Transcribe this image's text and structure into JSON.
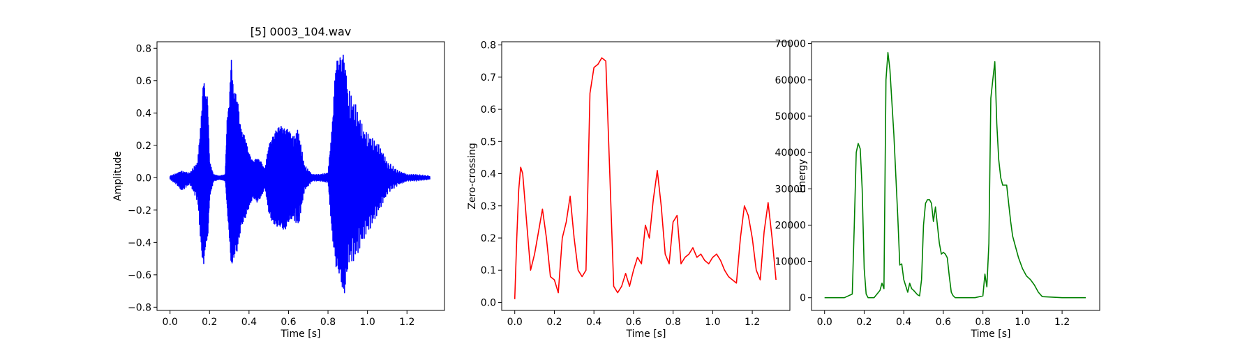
{
  "chart_data": [
    {
      "type": "line",
      "title": "[5] 0003_104.wav",
      "xlabel": "Time [s]",
      "ylabel": "Amplitude",
      "xlim": [
        -0.066,
        1.39
      ],
      "ylim": [
        -0.82,
        0.84
      ],
      "xticks": [
        "0.0",
        "0.2",
        "0.4",
        "0.6",
        "0.8",
        "1.0",
        "1.2"
      ],
      "yticks": [
        "−0.8",
        "−0.6",
        "−0.4",
        "−0.2",
        "0.0",
        "0.2",
        "0.4",
        "0.6",
        "0.8"
      ],
      "color": "#0000ff",
      "series": [
        {
          "x": [
            0.0,
            0.04,
            0.06,
            0.1,
            0.14,
            0.16,
            0.17,
            0.18,
            0.19,
            0.2,
            0.22,
            0.25,
            0.28,
            0.29,
            0.3,
            0.31,
            0.32,
            0.34,
            0.36,
            0.38,
            0.4,
            0.42,
            0.44,
            0.46,
            0.48,
            0.5,
            0.52,
            0.54,
            0.56,
            0.58,
            0.6,
            0.62,
            0.65,
            0.68,
            0.72,
            0.76,
            0.8,
            0.82,
            0.84,
            0.86,
            0.88,
            0.9,
            0.94,
            0.98,
            1.02,
            1.06,
            1.1,
            1.16,
            1.2,
            1.25,
            1.32
          ],
          "upper": [
            0.01,
            0.03,
            0.04,
            0.03,
            0.1,
            0.4,
            0.62,
            0.5,
            0.5,
            0.1,
            0.02,
            0.01,
            0.02,
            0.38,
            0.45,
            0.74,
            0.55,
            0.5,
            0.3,
            0.25,
            0.15,
            0.1,
            0.12,
            0.1,
            0.05,
            0.2,
            0.25,
            0.3,
            0.32,
            0.3,
            0.3,
            0.25,
            0.3,
            0.08,
            0.02,
            0.02,
            0.03,
            0.3,
            0.72,
            0.74,
            0.76,
            0.56,
            0.45,
            0.3,
            0.25,
            0.2,
            0.1,
            0.04,
            0.02,
            0.02,
            0.01
          ],
          "lower": [
            -0.01,
            -0.05,
            -0.08,
            -0.04,
            -0.15,
            -0.48,
            -0.53,
            -0.4,
            -0.38,
            -0.12,
            -0.02,
            -0.01,
            -0.02,
            -0.2,
            -0.37,
            -0.55,
            -0.5,
            -0.45,
            -0.3,
            -0.25,
            -0.18,
            -0.12,
            -0.15,
            -0.12,
            -0.06,
            -0.22,
            -0.28,
            -0.3,
            -0.3,
            -0.33,
            -0.27,
            -0.25,
            -0.3,
            -0.08,
            -0.02,
            -0.02,
            -0.03,
            -0.35,
            -0.55,
            -0.6,
            -0.74,
            -0.55,
            -0.5,
            -0.38,
            -0.3,
            -0.2,
            -0.1,
            -0.04,
            -0.02,
            -0.02,
            -0.01
          ]
        }
      ]
    },
    {
      "type": "line",
      "title": "",
      "xlabel": "Time [s]",
      "ylabel": "Zero-crossing",
      "xlim": [
        -0.066,
        1.39
      ],
      "ylim": [
        -0.025,
        0.81
      ],
      "xticks": [
        "0.0",
        "0.2",
        "0.4",
        "0.6",
        "0.8",
        "1.0",
        "1.2"
      ],
      "yticks": [
        "0.0",
        "0.1",
        "0.2",
        "0.3",
        "0.4",
        "0.5",
        "0.6",
        "0.7",
        "0.8"
      ],
      "color": "#ff0000",
      "series": [
        {
          "x": [
            0.0,
            0.01,
            0.02,
            0.03,
            0.04,
            0.06,
            0.08,
            0.1,
            0.12,
            0.14,
            0.16,
            0.18,
            0.2,
            0.22,
            0.24,
            0.26,
            0.28,
            0.3,
            0.32,
            0.34,
            0.36,
            0.38,
            0.4,
            0.42,
            0.44,
            0.46,
            0.48,
            0.5,
            0.52,
            0.54,
            0.56,
            0.58,
            0.6,
            0.62,
            0.64,
            0.66,
            0.68,
            0.7,
            0.72,
            0.74,
            0.76,
            0.78,
            0.8,
            0.82,
            0.84,
            0.86,
            0.88,
            0.9,
            0.92,
            0.94,
            0.96,
            0.98,
            1.0,
            1.02,
            1.04,
            1.06,
            1.08,
            1.1,
            1.12,
            1.14,
            1.16,
            1.18,
            1.2,
            1.22,
            1.24,
            1.26,
            1.28,
            1.3,
            1.32
          ],
          "values": [
            0.01,
            0.2,
            0.35,
            0.42,
            0.4,
            0.25,
            0.1,
            0.15,
            0.22,
            0.29,
            0.2,
            0.08,
            0.07,
            0.03,
            0.2,
            0.25,
            0.33,
            0.2,
            0.1,
            0.08,
            0.1,
            0.65,
            0.73,
            0.74,
            0.76,
            0.75,
            0.4,
            0.05,
            0.03,
            0.05,
            0.09,
            0.05,
            0.1,
            0.14,
            0.12,
            0.24,
            0.2,
            0.32,
            0.41,
            0.3,
            0.15,
            0.12,
            0.25,
            0.27,
            0.12,
            0.14,
            0.15,
            0.17,
            0.14,
            0.15,
            0.13,
            0.12,
            0.14,
            0.15,
            0.13,
            0.1,
            0.08,
            0.07,
            0.06,
            0.2,
            0.3,
            0.27,
            0.2,
            0.1,
            0.07,
            0.22,
            0.31,
            0.2,
            0.07
          ]
        }
      ]
    },
    {
      "type": "line",
      "title": "",
      "xlabel": "Time [s]",
      "ylabel": "Energy",
      "xlim": [
        -0.066,
        1.39
      ],
      "ylim": [
        -3500,
        70500
      ],
      "xticks": [
        "0.0",
        "0.2",
        "0.4",
        "0.6",
        "0.8",
        "1.0",
        "1.2"
      ],
      "yticks": [
        "0",
        "10000",
        "20000",
        "30000",
        "40000",
        "50000",
        "60000",
        "70000"
      ],
      "color": "#008000",
      "series": [
        {
          "x": [
            0.0,
            0.05,
            0.1,
            0.14,
            0.15,
            0.16,
            0.17,
            0.18,
            0.19,
            0.2,
            0.21,
            0.22,
            0.25,
            0.28,
            0.29,
            0.3,
            0.31,
            0.32,
            0.33,
            0.35,
            0.37,
            0.38,
            0.39,
            0.4,
            0.42,
            0.43,
            0.44,
            0.45,
            0.47,
            0.48,
            0.49,
            0.5,
            0.51,
            0.52,
            0.53,
            0.54,
            0.55,
            0.56,
            0.57,
            0.58,
            0.59,
            0.6,
            0.61,
            0.62,
            0.63,
            0.64,
            0.65,
            0.66,
            0.68,
            0.72,
            0.76,
            0.8,
            0.81,
            0.82,
            0.83,
            0.84,
            0.85,
            0.86,
            0.87,
            0.88,
            0.89,
            0.9,
            0.92,
            0.93,
            0.94,
            0.95,
            0.96,
            0.98,
            1.0,
            1.02,
            1.04,
            1.06,
            1.08,
            1.1,
            1.2,
            1.32
          ],
          "values": [
            0,
            0,
            0,
            1000,
            20000,
            40000,
            42500,
            41000,
            30000,
            8000,
            1000,
            0,
            0,
            2000,
            4000,
            2500,
            60000,
            67500,
            63000,
            45000,
            22000,
            9000,
            9300,
            5000,
            1500,
            4000,
            2500,
            2000,
            800,
            500,
            5000,
            20000,
            26000,
            27000,
            27000,
            26000,
            21000,
            25000,
            20000,
            15000,
            12000,
            12500,
            12000,
            11000,
            6000,
            1500,
            500,
            0,
            0,
            0,
            0,
            500,
            6500,
            3000,
            15000,
            55000,
            60000,
            65000,
            48000,
            38000,
            33000,
            31000,
            31000,
            26000,
            21000,
            17000,
            15000,
            11000,
            8000,
            6000,
            5000,
            3500,
            1500,
            300,
            0,
            0
          ]
        }
      ]
    }
  ]
}
